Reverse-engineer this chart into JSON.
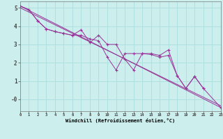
{
  "background_color": "#cceeed",
  "grid_color": "#aadddd",
  "line_color": "#993399",
  "xlim": [
    0,
    23
  ],
  "ylim": [
    -0.65,
    5.35
  ],
  "xlabel": "Windchill (Refroidissement éolien,°C)",
  "xticks": [
    0,
    1,
    2,
    3,
    4,
    5,
    6,
    7,
    8,
    9,
    10,
    11,
    12,
    13,
    14,
    15,
    16,
    17,
    18,
    19,
    20,
    21,
    22,
    23
  ],
  "yticks": [
    0,
    1,
    2,
    3,
    4,
    5
  ],
  "ytick_labels": [
    "-0",
    "1",
    "2",
    "3",
    "4",
    "5"
  ],
  "s1x": [
    0,
    1,
    2,
    3,
    4,
    5,
    6,
    7,
    8,
    9,
    10,
    11,
    12,
    13,
    14,
    15,
    16,
    17,
    18,
    19,
    20,
    21
  ],
  "s1y": [
    5.1,
    4.9,
    4.3,
    3.85,
    3.7,
    3.6,
    3.5,
    3.8,
    3.1,
    3.5,
    3.0,
    3.0,
    2.2,
    1.6,
    2.5,
    2.5,
    2.4,
    2.7,
    1.3,
    0.6,
    1.25,
    0.6
  ],
  "s2x": [
    0,
    1,
    2,
    3,
    4,
    5,
    6,
    7,
    8,
    9,
    10,
    11,
    12,
    13,
    14,
    15,
    16,
    17,
    18,
    19,
    20,
    21,
    23
  ],
  "s2y": [
    5.1,
    4.9,
    4.3,
    3.85,
    3.7,
    3.6,
    3.5,
    3.5,
    3.3,
    3.2,
    2.3,
    1.6,
    2.5,
    2.5,
    2.5,
    2.45,
    2.3,
    2.4,
    1.3,
    0.6,
    1.25,
    0.6,
    -0.45
  ],
  "trend1x": [
    0,
    23
  ],
  "trend1y": [
    5.1,
    -0.45
  ],
  "trend2x": [
    0,
    23
  ],
  "trend2y": [
    5.0,
    -0.35
  ]
}
